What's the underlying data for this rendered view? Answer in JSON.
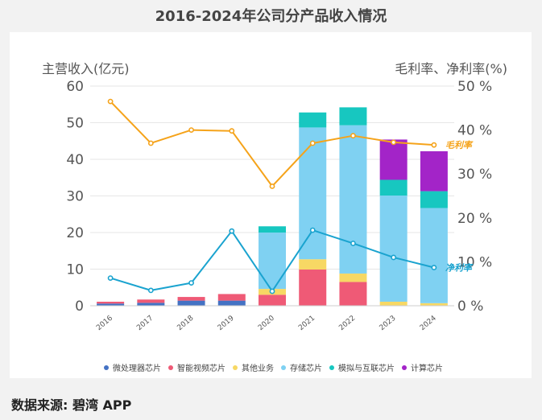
{
  "page_title": "2016-2024年公司分产品收入情况",
  "source_text": "数据来源: 碧湾 APP",
  "colors": {
    "bars": [
      "#4472c4",
      "#ef5a76",
      "#f7d864",
      "#7fd1f2",
      "#17c7c0",
      "#a324c8"
    ],
    "gross_line": "#f5a31a",
    "net_line": "#1aa3cf",
    "grid": "#e6e6e6"
  },
  "chart_data": {
    "type": "bar",
    "stacked": true,
    "categories": [
      "2016",
      "2017",
      "2018",
      "2019",
      "2020",
      "2021",
      "2022",
      "2023",
      "2024"
    ],
    "series": [
      {
        "name": "微处理器芯片",
        "values": [
          0.6,
          0.8,
          1.4,
          1.4,
          0,
          0,
          0,
          0,
          0
        ]
      },
      {
        "name": "智能视频芯片",
        "values": [
          0.5,
          0.9,
          1.0,
          1.8,
          3.0,
          9.9,
          6.5,
          0,
          0
        ]
      },
      {
        "name": "其他业务",
        "values": [
          0,
          0,
          0,
          0,
          1.6,
          2.8,
          2.3,
          1.1,
          0.7
        ]
      },
      {
        "name": "存储芯片",
        "values": [
          0,
          0,
          0,
          0,
          15.4,
          36.0,
          40.5,
          29.0,
          26.0
        ]
      },
      {
        "name": "模拟与互联芯片",
        "values": [
          0,
          0,
          0,
          0,
          1.7,
          4.1,
          4.9,
          4.3,
          4.6
        ]
      },
      {
        "name": "计算芯片",
        "values": [
          0,
          0,
          0,
          0,
          0,
          0,
          0,
          11.0,
          10.9
        ]
      }
    ],
    "lines": [
      {
        "name": "毛利率",
        "axis": "right",
        "values": [
          46.5,
          37.0,
          40.0,
          39.8,
          27.2,
          37.0,
          38.7,
          37.2,
          36.6
        ]
      },
      {
        "name": "净利率",
        "axis": "right",
        "values": [
          6.3,
          3.5,
          5.2,
          17.0,
          3.3,
          17.2,
          14.2,
          11.0,
          8.7
        ]
      }
    ],
    "left_axis": {
      "label": "主营收入(亿元)",
      "ylim": [
        0,
        60
      ],
      "ticks": [
        "0",
        "10",
        "20",
        "30",
        "40",
        "50",
        "60"
      ]
    },
    "right_axis": {
      "label": "毛利率、净利率(%)",
      "ylim": [
        0,
        50
      ],
      "ticks": [
        "0 %",
        "10 %",
        "20 %",
        "30 %",
        "40 %",
        "50 %"
      ]
    }
  }
}
